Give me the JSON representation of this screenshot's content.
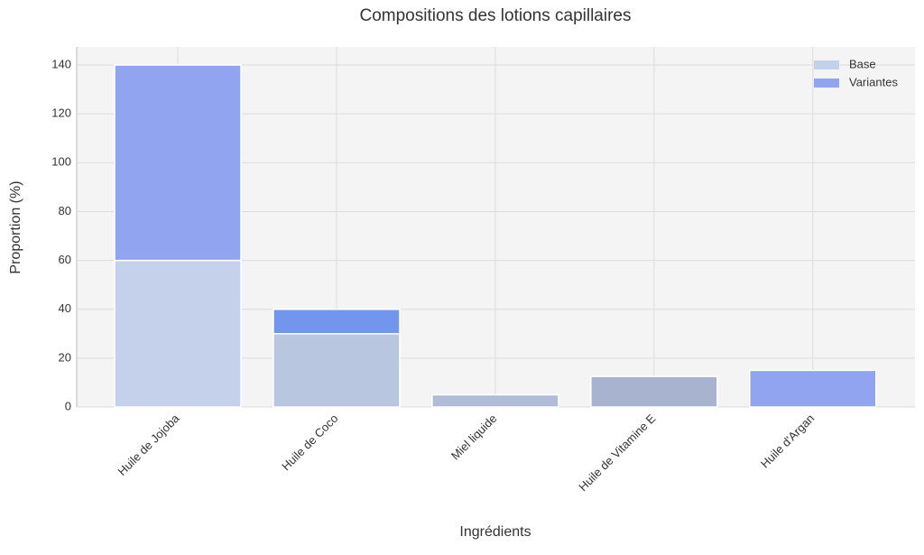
{
  "chart_data": {
    "type": "bar",
    "stacked": true,
    "title": "Compositions des lotions capillaires",
    "xlabel": "Ingrédients",
    "ylabel": "Proportion (%)",
    "categories": [
      "Huile de Jojoba",
      "Huile de Coco",
      "Miel liquide",
      "Huile de Vitamine E",
      "Huile d'Argan"
    ],
    "series": [
      {
        "name": "Base",
        "color": "#c5d1ea",
        "colors": [
          "#c5d1ea",
          "#b9c6e0",
          "#b0bcd8",
          "#a8b3d0",
          "#c5d1ea"
        ],
        "values": [
          60,
          30,
          5,
          12.5,
          0
        ]
      },
      {
        "name": "Variantes",
        "color": "#91a4f0",
        "colors": [
          "#91a4f0",
          "#7296ee",
          "#91a4f0",
          "#91a4f0",
          "#91a4f0"
        ],
        "values": [
          80,
          10,
          0,
          0,
          15
        ]
      }
    ],
    "ylim": [
      0,
      147.4
    ],
    "yticks": [
      0,
      20,
      40,
      60,
      80,
      100,
      120,
      140
    ],
    "grid": true,
    "legend": "upper right"
  }
}
